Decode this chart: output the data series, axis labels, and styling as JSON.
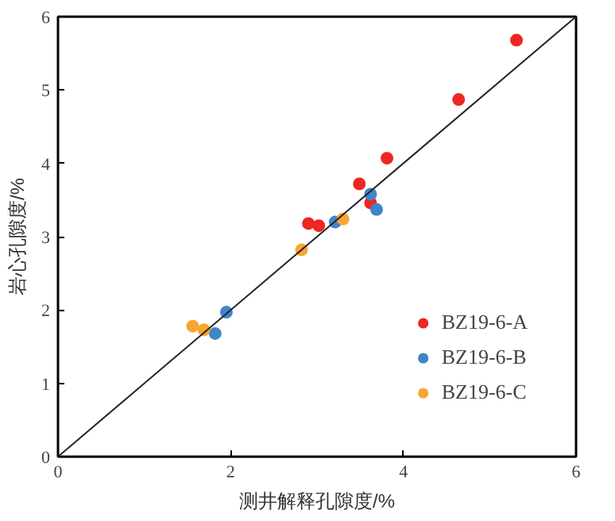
{
  "chart_data": {
    "type": "scatter",
    "xlabel": "测井解释孔隙度/%",
    "ylabel": "岩心孔隙度/%",
    "xlim": [
      0,
      6
    ],
    "ylim": [
      0,
      6
    ],
    "xticks": [
      0,
      2,
      4,
      6
    ],
    "yticks": [
      0,
      1,
      2,
      3,
      4,
      5,
      6
    ],
    "grid": false,
    "legend": "bottom right",
    "marker": "circle",
    "series": [
      {
        "name": "BZ19-6-A",
        "color": "#ee2722",
        "x": [
          5.31,
          4.64,
          3.81,
          3.49,
          3.62,
          2.9,
          3.02
        ],
        "values": [
          5.68,
          4.87,
          4.07,
          3.72,
          3.46,
          3.18,
          3.15
        ]
      },
      {
        "name": "BZ19-6-B",
        "color": "#3f86c8",
        "x": [
          3.62,
          3.69,
          3.21,
          1.95,
          1.82
        ],
        "values": [
          3.58,
          3.37,
          3.2,
          1.97,
          1.68
        ]
      },
      {
        "name": "BZ19-6-C",
        "color": "#f7a632",
        "x": [
          3.3,
          2.82,
          1.56,
          1.69
        ],
        "values": [
          3.24,
          2.82,
          1.78,
          1.73
        ]
      },
      {
        "type": "line",
        "color": "#222222",
        "x": [
          0,
          6
        ],
        "values": [
          0,
          6
        ],
        "marker": "none",
        "line_style": "solid"
      }
    ]
  }
}
